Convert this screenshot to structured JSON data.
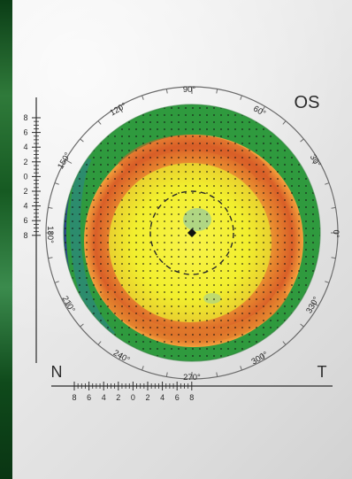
{
  "eye_label": "OS",
  "nasal_label": "N",
  "temporal_label": "T",
  "angle_labels": {
    "a90": "90°",
    "a60": "60°",
    "a30": "30°",
    "a0": "0°",
    "a330": "330°",
    "a300": "300°",
    "a270": "270°",
    "a240": "240°",
    "a210": "210°",
    "a180": "180°",
    "a150": "150°",
    "a120": "120°"
  },
  "vertical_scale_ticks": [
    "8",
    "6",
    "4",
    "2",
    "0",
    "2",
    "4",
    "6",
    "8"
  ],
  "horizontal_scale_ticks": [
    "8",
    "6",
    "4",
    "2",
    "0",
    "2",
    "4",
    "6",
    "8"
  ],
  "map_colors": {
    "outer_green": "#2f9a3e",
    "blue": "#2d3f8f",
    "orange": "#e58a2a",
    "red_orange": "#d9622a",
    "yellow": "#f2ef2e",
    "light_green": "#a9d38b"
  }
}
